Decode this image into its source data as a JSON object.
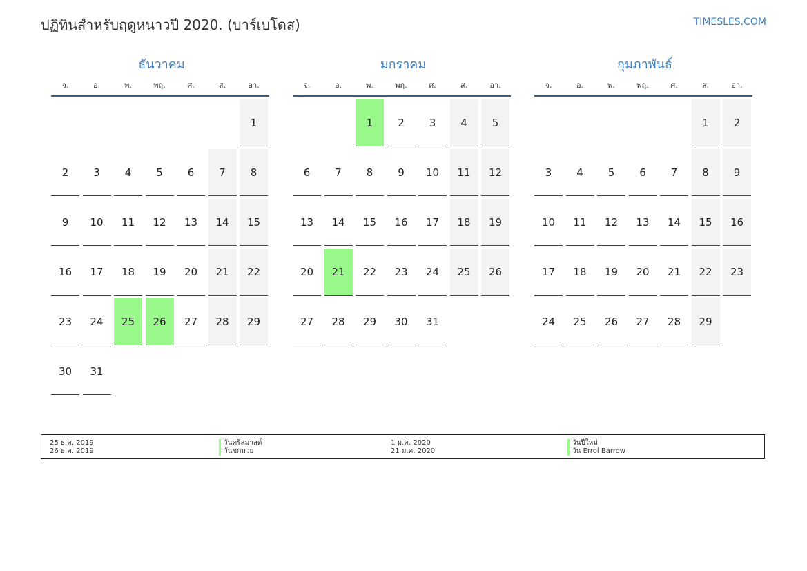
{
  "header": {
    "title": "ปฏิทินสำหรับฤดูหนาวปี 2020. (บาร์เบโดส)",
    "site": "TIMESLES.COM"
  },
  "colors": {
    "accent": "#3a7fc1",
    "holiday": "#99f98a",
    "weekend": "#f3f3f3"
  },
  "weekdays": [
    "จ.",
    "อ.",
    "พ.",
    "พฤ.",
    "ศ.",
    "ส.",
    "อา."
  ],
  "months": [
    {
      "name": "ธันวาคม",
      "offset": 6,
      "days": 31,
      "holidays": [
        25,
        26
      ]
    },
    {
      "name": "มกราคม",
      "offset": 2,
      "days": 31,
      "holidays": [
        1,
        21
      ]
    },
    {
      "name": "กุมภาพันธ์",
      "offset": 5,
      "days": 29,
      "holidays": []
    }
  ],
  "legend": {
    "col1": {
      "dates": [
        "25 ธ.ค. 2019",
        "26 ธ.ค. 2019"
      ],
      "names": [
        "วันคริสมาสต์",
        "วันชกมวย"
      ]
    },
    "col2": {
      "dates": [
        "1 ม.ค. 2020",
        "21 ม.ค. 2020"
      ],
      "names": [
        "วันปีใหม่",
        "วัน Errol Barrow"
      ]
    }
  }
}
